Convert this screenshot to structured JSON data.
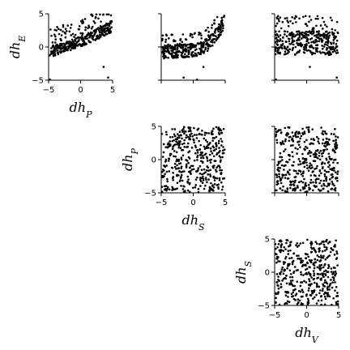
{
  "chart_data": [
    {
      "type": "scatter",
      "row": 0,
      "col": 0,
      "x_var": "dh_P",
      "y_var": "dh_E",
      "xlabel_main": "dh",
      "xlabel_sub": "P",
      "ylabel_main": "dh",
      "ylabel_sub": "E",
      "show_x_ticklabels": true,
      "show_y_ticklabels": true,
      "xlim": [
        -5,
        5
      ],
      "ylim": [
        -5,
        5
      ],
      "xticks": [
        -5,
        0,
        5
      ],
      "yticks": [
        -5,
        0,
        5
      ],
      "pattern": "rising",
      "count": 360,
      "outliers": [
        [
          -4.8,
          -4.9
        ],
        [
          3.6,
          -3.0
        ],
        [
          4.3,
          -4.6
        ]
      ]
    },
    {
      "type": "scatter",
      "row": 0,
      "col": 1,
      "x_var": "dh_S",
      "y_var": "dh_E",
      "show_x_ticklabels": false,
      "show_y_ticklabels": false,
      "xlim": [
        -5,
        5
      ],
      "ylim": [
        -5,
        5
      ],
      "xticks": [
        -5,
        0,
        5
      ],
      "yticks": [
        -5,
        0,
        5
      ],
      "pattern": "curve",
      "count": 360,
      "outliers": [
        [
          -1.5,
          -4.6
        ],
        [
          1.6,
          -3.0
        ],
        [
          0.6,
          -4.9
        ]
      ]
    },
    {
      "type": "scatter",
      "row": 0,
      "col": 2,
      "x_var": "dh_V",
      "y_var": "dh_E",
      "show_x_ticklabels": false,
      "show_y_ticklabels": false,
      "xlim": [
        -5,
        5
      ],
      "ylim": [
        -5,
        5
      ],
      "xticks": [
        -5,
        0,
        5
      ],
      "yticks": [
        -5,
        0,
        5
      ],
      "pattern": "band",
      "count": 380,
      "outliers": [
        [
          -4.8,
          -4.9
        ],
        [
          0.5,
          -3.0
        ],
        [
          4.7,
          -4.6
        ]
      ]
    },
    {
      "type": "scatter",
      "row": 1,
      "col": 1,
      "x_var": "dh_S",
      "y_var": "dh_P",
      "xlabel_main": "dh",
      "xlabel_sub": "S",
      "ylabel_main": "dh",
      "ylabel_sub": "P",
      "show_x_ticklabels": true,
      "show_y_ticklabels": true,
      "xlim": [
        -5,
        5
      ],
      "ylim": [
        -5,
        5
      ],
      "xticks": [
        -5,
        0,
        5
      ],
      "yticks": [
        -5,
        0,
        5
      ],
      "pattern": "uniform",
      "count": 420,
      "outliers": []
    },
    {
      "type": "scatter",
      "row": 1,
      "col": 2,
      "x_var": "dh_V",
      "y_var": "dh_P",
      "show_x_ticklabels": false,
      "show_y_ticklabels": false,
      "xlim": [
        -5,
        5
      ],
      "ylim": [
        -5,
        5
      ],
      "xticks": [
        -5,
        0,
        5
      ],
      "yticks": [
        -5,
        0,
        5
      ],
      "pattern": "uniform",
      "count": 420,
      "outliers": []
    },
    {
      "type": "scatter",
      "row": 2,
      "col": 2,
      "x_var": "dh_V",
      "y_var": "dh_S",
      "xlabel_main": "dh",
      "xlabel_sub": "V",
      "ylabel_main": "dh",
      "ylabel_sub": "S",
      "show_x_ticklabels": true,
      "show_y_ticklabels": true,
      "xlim": [
        -5,
        5
      ],
      "ylim": [
        -5,
        5
      ],
      "xticks": [
        -5,
        0,
        5
      ],
      "yticks": [
        -5,
        0,
        5
      ],
      "pattern": "uniform",
      "count": 420,
      "outliers": []
    }
  ]
}
